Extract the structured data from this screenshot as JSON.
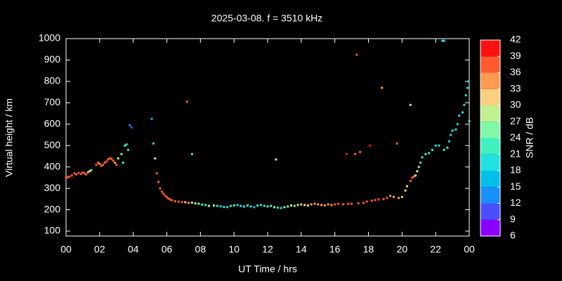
{
  "chart_data": {
    "type": "scatter",
    "title": "2025-03-08. f = 3510 kHz",
    "x_label": "UT Time / hrs",
    "y_label": "Virtual height / km",
    "colorbar_label": "SNR / dB",
    "xlim": [
      0,
      24
    ],
    "xticks": [
      {
        "value": 0,
        "label": "00"
      },
      {
        "value": 2,
        "label": "02"
      },
      {
        "value": 4,
        "label": "04"
      },
      {
        "value": 6,
        "label": "06"
      },
      {
        "value": 8,
        "label": "08"
      },
      10,
      12,
      14,
      16,
      18,
      20,
      22,
      {
        "value": 24,
        "label": "00"
      }
    ],
    "ylim": [
      77,
      1000
    ],
    "yticks": [
      100,
      200,
      300,
      400,
      500,
      600,
      700,
      800,
      900,
      1000
    ],
    "clim": [
      6,
      42
    ],
    "cticks": [
      6,
      9,
      12,
      15,
      18,
      21,
      24,
      27,
      30,
      33,
      36,
      39,
      42
    ],
    "colormap": [
      "#8a00ff",
      "#4a50ff",
      "#1a90ff",
      "#00c0ea",
      "#20e0e0",
      "#40f0c0",
      "#80f8a8",
      "#c0f090",
      "#f8d080",
      "#ff9a50",
      "#ff5a30",
      "#ff1010"
    ],
    "x": [
      0,
      0.1,
      0.2,
      0.35,
      0.5,
      0.6,
      0.75,
      0.9,
      1.0,
      1.1,
      1.2,
      1.3,
      1.4,
      1.5,
      1.8,
      1.9,
      2.0,
      2.1,
      2.2,
      2.3,
      2.4,
      2.5,
      2.6,
      2.7,
      2.8,
      2.9,
      3.0,
      3.1,
      3.3,
      3.4,
      3.5,
      3.6,
      3.7,
      3.8,
      3.9,
      5.1,
      5.2,
      5.3,
      5.4,
      5.5,
      5.6,
      5.7,
      5.8,
      5.9,
      6.0,
      6.1,
      6.2,
      6.3,
      6.5,
      6.7,
      6.9,
      7.1,
      7.2,
      7.3,
      7.5,
      7.5,
      7.7,
      7.9,
      8.1,
      8.3,
      8.5,
      8.8,
      9.0,
      9.2,
      9.4,
      9.6,
      9.8,
      10.0,
      10.2,
      10.4,
      10.6,
      10.8,
      11.0,
      11.2,
      11.4,
      11.6,
      11.8,
      12.0,
      12.2,
      12.4,
      12.5,
      12.6,
      12.8,
      13.0,
      13.2,
      13.4,
      13.6,
      13.8,
      14.0,
      14.2,
      14.4,
      14.6,
      14.8,
      15.0,
      15.2,
      15.4,
      15.6,
      15.8,
      16.0,
      16.2,
      16.5,
      16.7,
      16.8,
      17.0,
      17.2,
      17.3,
      17.4,
      17.5,
      17.7,
      17.9,
      18.1,
      18.2,
      18.4,
      18.6,
      18.8,
      18.9,
      19.1,
      19.3,
      19.5,
      19.7,
      19.8,
      20.0,
      20.2,
      20.3,
      20.5,
      20.5,
      20.6,
      20.7,
      20.8,
      20.9,
      21.0,
      21.1,
      21.2,
      21.4,
      21.6,
      21.8,
      22.0,
      22.2,
      22.4,
      22.5,
      22.5,
      22.7,
      22.8,
      22.9,
      23.0,
      23.2,
      23.3,
      23.4,
      23.6,
      23.7,
      23.8,
      23.9,
      23.95,
      24.0
    ],
    "y": [
      350,
      352,
      355,
      360,
      370,
      365,
      372,
      368,
      375,
      370,
      365,
      375,
      380,
      385,
      410,
      420,
      415,
      405,
      410,
      420,
      425,
      435,
      440,
      438,
      430,
      420,
      410,
      440,
      460,
      420,
      500,
      505,
      480,
      595,
      585,
      625,
      510,
      440,
      370,
      330,
      300,
      285,
      275,
      265,
      258,
      252,
      248,
      244,
      240,
      238,
      236,
      235,
      705,
      232,
      460,
      233,
      230,
      228,
      224,
      222,
      218,
      220,
      218,
      216,
      213,
      212,
      218,
      220,
      222,
      218,
      215,
      220,
      215,
      212,
      220,
      222,
      218,
      215,
      218,
      212,
      435,
      210,
      208,
      212,
      215,
      220,
      218,
      222,
      225,
      222,
      220,
      225,
      228,
      225,
      222,
      220,
      225,
      222,
      225,
      228,
      225,
      460,
      228,
      228,
      460,
      925,
      230,
      470,
      232,
      238,
      500,
      242,
      245,
      248,
      770,
      250,
      255,
      265,
      260,
      510,
      255,
      260,
      290,
      310,
      335,
      690,
      350,
      355,
      360,
      380,
      400,
      420,
      445,
      460,
      465,
      480,
      500,
      500,
      990,
      990,
      480,
      490,
      520,
      550,
      570,
      575,
      600,
      640,
      655,
      690,
      735,
      770,
      800,
      615
    ],
    "snr": [
      36,
      36,
      38,
      36,
      36,
      38,
      36,
      36,
      38,
      36,
      36,
      33,
      27,
      24,
      36,
      36,
      33,
      36,
      36,
      38,
      36,
      36,
      36,
      38,
      36,
      33,
      36,
      27,
      24,
      21,
      21,
      21,
      20,
      12,
      9,
      15,
      20,
      27,
      36,
      36,
      36,
      38,
      36,
      38,
      36,
      36,
      38,
      36,
      36,
      38,
      36,
      32,
      36,
      33,
      21,
      30,
      27,
      24,
      21,
      21,
      27,
      24,
      21,
      20,
      20,
      18,
      21,
      21,
      18,
      18,
      20,
      21,
      20,
      15,
      21,
      20,
      21,
      21,
      24,
      24,
      27,
      21,
      20,
      24,
      24,
      27,
      24,
      27,
      30,
      30,
      30,
      33,
      33,
      33,
      33,
      33,
      33,
      33,
      36,
      36,
      36,
      42,
      36,
      36,
      36,
      36,
      36,
      36,
      36,
      36,
      39,
      36,
      36,
      36,
      33,
      36,
      36,
      33,
      33,
      36,
      33,
      30,
      30,
      30,
      36,
      30,
      36,
      36,
      30,
      27,
      24,
      21,
      21,
      21,
      21,
      21,
      20,
      18,
      18,
      18,
      21,
      21,
      20,
      20,
      21,
      20,
      18,
      18,
      18,
      18,
      18,
      18,
      20,
      21
    ]
  }
}
